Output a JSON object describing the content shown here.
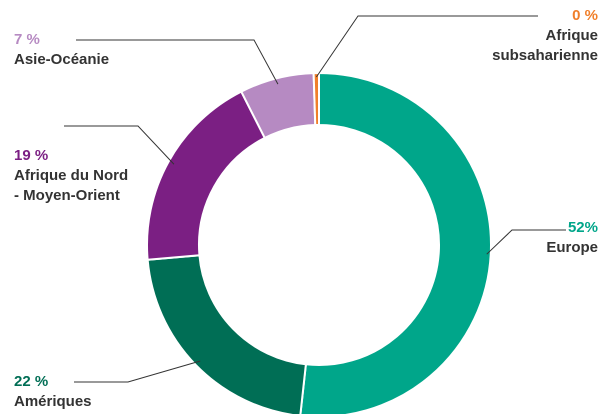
{
  "chart_data": {
    "type": "pie",
    "donut": true,
    "slices": [
      {
        "name": "Europe",
        "pct_label": "52%",
        "value": 52,
        "color": "#00a68a"
      },
      {
        "name": "Amériques",
        "pct_label": "22 %",
        "value": 22,
        "color": "#006e55"
      },
      {
        "name": "Afrique du Nord - Moyen-Orient",
        "name_lines": [
          "Afrique du Nord",
          "- Moyen-Orient"
        ],
        "pct_label": "19 %",
        "value": 19,
        "color": "#7b1f83"
      },
      {
        "name": "Asie-Océanie",
        "pct_label": "7 %",
        "value": 7,
        "color": "#b68ac2"
      },
      {
        "name": "Afrique subsaharienne",
        "name_lines": [
          "Afrique",
          "subsaharienne"
        ],
        "pct_label": "0 %",
        "value": 0.5,
        "color": "#f07f2a"
      }
    ]
  }
}
